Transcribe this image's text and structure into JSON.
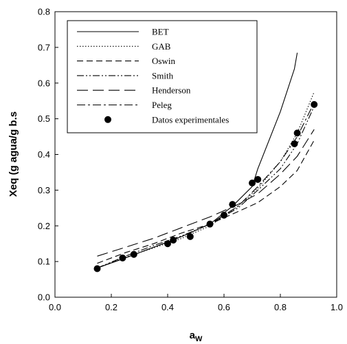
{
  "chart_data": {
    "type": "line",
    "title": "",
    "xlabel": "a",
    "xlabel_subscript": "W",
    "ylabel": "Xeq (g agua/g b.s",
    "xlim": [
      0.0,
      1.0
    ],
    "ylim": [
      0.0,
      0.8
    ],
    "x_ticks": [
      "0.0",
      "0.2",
      "0.4",
      "0.6",
      "0.8",
      "1.0"
    ],
    "y_ticks": [
      "0.0",
      "0.1",
      "0.2",
      "0.3",
      "0.4",
      "0.5",
      "0.6",
      "0.7",
      "0.8"
    ],
    "grid": false,
    "legend_position": "top-left",
    "series": [
      {
        "name": "BET",
        "style": "solid",
        "x": [
          0.15,
          0.25,
          0.35,
          0.45,
          0.55,
          0.63,
          0.7,
          0.72,
          0.8,
          0.85,
          0.86
        ],
        "y": [
          0.082,
          0.11,
          0.14,
          0.17,
          0.205,
          0.255,
          0.31,
          0.36,
          0.52,
          0.64,
          0.685
        ]
      },
      {
        "name": "GAB",
        "style": "dotted",
        "x": [
          0.15,
          0.25,
          0.35,
          0.45,
          0.55,
          0.65,
          0.72,
          0.8,
          0.86,
          0.92
        ],
        "y": [
          0.082,
          0.112,
          0.138,
          0.165,
          0.2,
          0.255,
          0.305,
          0.38,
          0.46,
          0.575
        ]
      },
      {
        "name": "Oswin",
        "style": "dashed",
        "x": [
          0.15,
          0.25,
          0.35,
          0.45,
          0.55,
          0.65,
          0.72,
          0.8,
          0.86,
          0.92
        ],
        "y": [
          0.095,
          0.125,
          0.15,
          0.18,
          0.205,
          0.24,
          0.265,
          0.31,
          0.355,
          0.44
        ]
      },
      {
        "name": "Smith",
        "style": "dash-dot-dot",
        "x": [
          0.15,
          0.25,
          0.35,
          0.45,
          0.55,
          0.65,
          0.72,
          0.8,
          0.86,
          0.92
        ],
        "y": [
          0.082,
          0.115,
          0.145,
          0.172,
          0.205,
          0.25,
          0.3,
          0.36,
          0.43,
          0.535
        ]
      },
      {
        "name": "Henderson",
        "style": "long-dash",
        "x": [
          0.15,
          0.25,
          0.35,
          0.45,
          0.55,
          0.65,
          0.72,
          0.8,
          0.86,
          0.92
        ],
        "y": [
          0.115,
          0.14,
          0.165,
          0.195,
          0.225,
          0.26,
          0.29,
          0.345,
          0.395,
          0.47
        ]
      },
      {
        "name": "Peleg",
        "style": "dash-dot",
        "x": [
          0.15,
          0.25,
          0.35,
          0.45,
          0.55,
          0.65,
          0.72,
          0.8,
          0.86,
          0.92
        ],
        "y": [
          0.082,
          0.11,
          0.14,
          0.17,
          0.205,
          0.255,
          0.31,
          0.38,
          0.45,
          0.545
        ]
      }
    ],
    "points": {
      "name": "Datos experimentales",
      "x": [
        0.15,
        0.24,
        0.28,
        0.4,
        0.42,
        0.48,
        0.55,
        0.6,
        0.63,
        0.7,
        0.72,
        0.85,
        0.86,
        0.92
      ],
      "y": [
        0.08,
        0.11,
        0.12,
        0.15,
        0.16,
        0.17,
        0.205,
        0.23,
        0.26,
        0.32,
        0.33,
        0.43,
        0.46,
        0.54
      ]
    }
  }
}
